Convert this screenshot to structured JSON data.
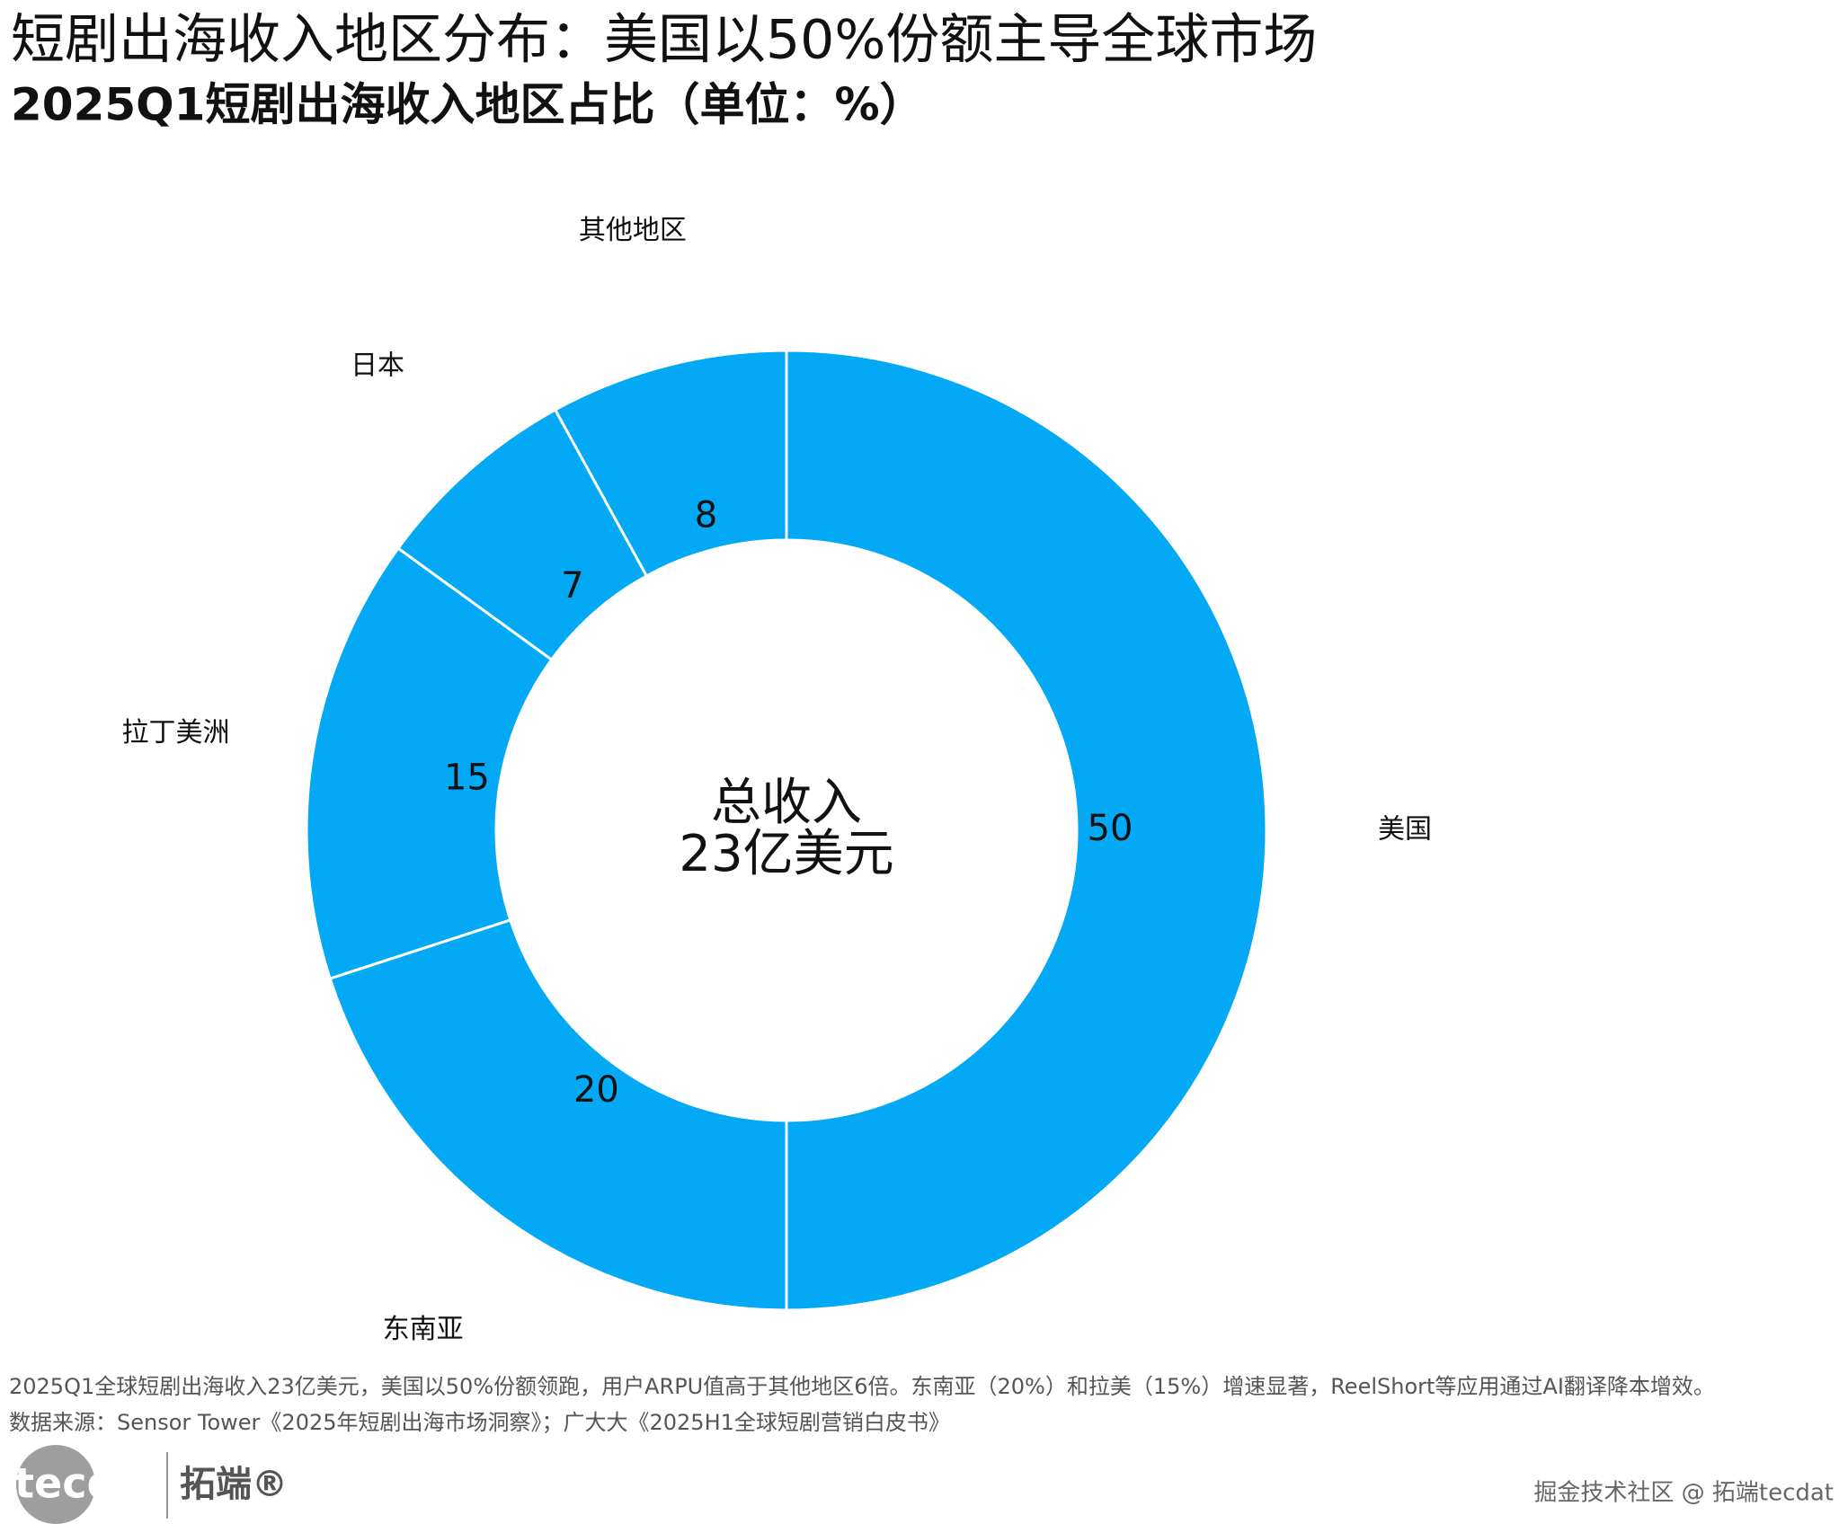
{
  "chart_data": {
    "type": "pie",
    "title": "短剧出海收入地区分布：美国以50%份额主导全球市场",
    "subtitle": "2025Q1短剧出海收入地区占比（单位：%）",
    "categories": [
      "美国",
      "东南亚",
      "拉丁美洲",
      "日本",
      "其他地区"
    ],
    "values": [
      50,
      20,
      15,
      7,
      8
    ],
    "color": "#03a9f4",
    "center_text": [
      "总收入",
      "23亿美元"
    ],
    "note": "2025Q1全球短剧出海收入23亿美元，美国以50%份额领跑，用户ARPU值高于其他地区6倍。东南亚（20%）和拉美（15%）增速显著，ReelShort等应用通过AI翻译降本增效。",
    "source": "数据来源：Sensor Tower《2025年短剧出海市场洞察》；广大大《2025H1全球短剧营销白皮书》"
  },
  "logo": {
    "text": "tecdat",
    "brand": "拓端®"
  },
  "watermark": "掘金技术社区 @ 拓端tecdat"
}
